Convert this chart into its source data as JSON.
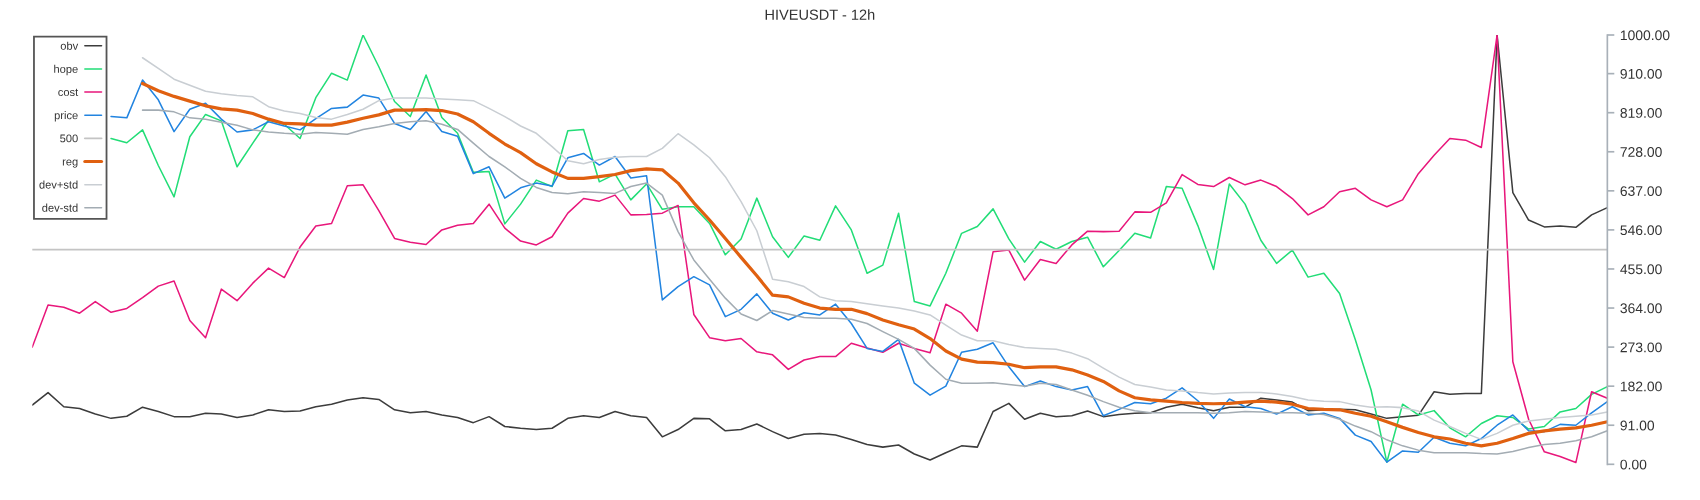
{
  "chart_data": {
    "type": "line",
    "title": "HIVEUSDT - 12h",
    "categories": [
      null,
      null,
      null,
      null,
      null,
      null,
      null,
      null,
      null,
      null,
      null,
      null,
      null,
      null,
      null,
      null,
      null,
      null,
      null,
      null,
      null,
      null,
      null,
      null,
      null,
      null,
      null,
      null,
      null,
      null,
      null,
      null,
      null,
      null,
      null,
      null,
      null,
      null,
      null,
      null,
      null,
      null,
      null,
      null,
      null,
      null,
      null,
      null,
      null,
      null,
      null,
      null,
      null,
      null,
      null,
      null,
      null,
      null,
      null,
      null,
      null,
      null,
      null,
      null,
      null,
      null,
      null,
      null,
      null,
      null,
      null,
      null,
      null,
      null,
      null,
      null,
      null,
      null,
      null,
      null,
      null,
      null,
      null,
      null,
      null,
      null,
      null,
      null,
      null,
      null,
      null,
      null,
      null,
      null,
      null,
      null,
      null,
      null,
      null,
      null,
      null
    ],
    "series": [
      {
        "name": "obv",
        "color": "#3c3c3c",
        "values": [
          138,
          167,
          134,
          130,
          117,
          107,
          112,
          133,
          123,
          111,
          111,
          119,
          117,
          109,
          115,
          127,
          123,
          124,
          134,
          140,
          150,
          155,
          151,
          127,
          120,
          123,
          115,
          109,
          97,
          111,
          88,
          84,
          81,
          84,
          107,
          113,
          109,
          123,
          113,
          109,
          64,
          81,
          107,
          106,
          78,
          81,
          94,
          76,
          60,
          70,
          72,
          68,
          58,
          46,
          40,
          45,
          24,
          10,
          27,
          43,
          40,
          123,
          142,
          105,
          119,
          111,
          113,
          124,
          111,
          116,
          119,
          120,
          133,
          140,
          132,
          125,
          133,
          133,
          154,
          150,
          145,
          125,
          127,
          128,
          127,
          117,
          107,
          111,
          114,
          169,
          163,
          165,
          165,
          1000,
          633,
          569,
          553,
          555,
          552,
          581,
          598
        ]
      },
      {
        "name": "hope",
        "color": "#22dd77",
        "values": [
          null,
          null,
          null,
          null,
          null,
          759,
          749,
          779,
          696,
          623,
          763,
          815,
          800,
          693,
          748,
          802,
          792,
          759,
          854,
          911,
          895,
          1000,
          926,
          845,
          810,
          907,
          808,
          771,
          680,
          682,
          560,
          606,
          662,
          647,
          777,
          780,
          658,
          676,
          616,
          653,
          594,
          600,
          600,
          561,
          488,
          525,
          620,
          530,
          482,
          532,
          522,
          602,
          546,
          445,
          464,
          585,
          379,
          369,
          445,
          538,
          554,
          595,
          525,
          471,
          519,
          501,
          519,
          529,
          460,
          498,
          538,
          527,
          647,
          643,
          556,
          454,
          653,
          606,
          522,
          468,
          499,
          436,
          445,
          398,
          290,
          173,
          5,
          140,
          115,
          125,
          85,
          64,
          95,
          113,
          109,
          82,
          88,
          122,
          130,
          163,
          181
        ]
      },
      {
        "name": "cost",
        "color": "#e8177b",
        "values": [
          273,
          371,
          366,
          352,
          379,
          354,
          363,
          388,
          415,
          427,
          335,
          295,
          408,
          381,
          422,
          457,
          435,
          506,
          555,
          561,
          649,
          651,
          591,
          526,
          517,
          512,
          546,
          557,
          561,
          606,
          550,
          520,
          511,
          530,
          585,
          619,
          613,
          627,
          581,
          582,
          585,
          603,
          349,
          295,
          288,
          293,
          262,
          255,
          221,
          243,
          251,
          251,
          282,
          271,
          261,
          282,
          270,
          260,
          373,
          352,
          310,
          495,
          499,
          429,
          477,
          468,
          511,
          543,
          542,
          543,
          588,
          587,
          609,
          675,
          652,
          647,
          668,
          651,
          662,
          647,
          619,
          581,
          600,
          635,
          643,
          616,
          600,
          616,
          677,
          720,
          759,
          755,
          738,
          1000,
          239,
          105,
          29,
          18,
          4,
          169,
          154
        ]
      },
      {
        "name": "price",
        "color": "#2284e0",
        "values": [
          null,
          null,
          null,
          null,
          null,
          810,
          807,
          895,
          849,
          775,
          827,
          841,
          804,
          774,
          779,
          798,
          788,
          779,
          805,
          829,
          832,
          860,
          853,
          794,
          780,
          822,
          775,
          764,
          677,
          693,
          620,
          644,
          655,
          648,
          714,
          724,
          697,
          717,
          667,
          672,
          383,
          414,
          437,
          418,
          344,
          361,
          397,
          352,
          336,
          353,
          348,
          373,
          328,
          270,
          263,
          291,
          189,
          161,
          182,
          261,
          268,
          283,
          227,
          181,
          194,
          181,
          173,
          181,
          113,
          128,
          144,
          141,
          154,
          178,
          148,
          107,
          152,
          134,
          130,
          117,
          134,
          115,
          119,
          107,
          68,
          53,
          5,
          31,
          28,
          63,
          49,
          43,
          60,
          91,
          115,
          78,
          76,
          93,
          91,
          120,
          146
        ]
      },
      {
        "name": "500",
        "color": "#c4c4c4",
        "values": [
          500,
          500,
          500,
          500,
          500,
          500,
          500,
          500,
          500,
          500,
          500,
          500,
          500,
          500,
          500,
          500,
          500,
          500,
          500,
          500,
          500,
          500,
          500,
          500,
          500,
          500,
          500,
          500,
          500,
          500,
          500,
          500,
          500,
          500,
          500,
          500,
          500,
          500,
          500,
          500,
          500,
          500,
          500,
          500,
          500,
          500,
          500,
          500,
          500,
          500,
          500,
          500,
          500,
          500,
          500,
          500,
          500,
          500,
          500,
          500,
          500,
          500,
          500,
          500,
          500,
          500,
          500,
          500,
          500,
          500,
          500,
          500,
          500,
          500,
          500,
          500,
          500,
          500,
          500,
          500,
          500,
          500,
          500,
          500,
          500,
          500,
          500,
          500,
          500,
          500,
          500,
          500,
          500,
          500,
          500,
          500,
          500,
          500,
          500,
          500,
          500
        ]
      },
      {
        "name": "reg",
        "color": "#e06010",
        "values": [
          null,
          null,
          null,
          null,
          null,
          null,
          null,
          887,
          870,
          857,
          846,
          835,
          828,
          825,
          817,
          804,
          794,
          793,
          790,
          790,
          797,
          806,
          814,
          825,
          825,
          826,
          824,
          816,
          798,
          771,
          746,
          726,
          700,
          681,
          666,
          666,
          670,
          675,
          684,
          688,
          686,
          655,
          609,
          569,
          526,
          482,
          439,
          394,
          390,
          375,
          364,
          361,
          361,
          351,
          336,
          325,
          315,
          293,
          264,
          245,
          238,
          237,
          233,
          225,
          227,
          227,
          220,
          208,
          193,
          171,
          155,
          150,
          147,
          144,
          142,
          141,
          142,
          145,
          147,
          145,
          140,
          130,
          128,
          127,
          119,
          112,
          99,
          86,
          74,
          64,
          59,
          49,
          43,
          49,
          60,
          72,
          78,
          82,
          85,
          91,
          99
        ]
      },
      {
        "name": "dev+std",
        "color": "#c9ced3",
        "values": [
          null,
          null,
          null,
          null,
          null,
          null,
          null,
          947,
          922,
          897,
          883,
          869,
          863,
          859,
          856,
          833,
          823,
          817,
          808,
          804,
          815,
          827,
          847,
          853,
          853,
          853,
          851,
          849,
          847,
          829,
          810,
          788,
          771,
          740,
          707,
          700,
          710,
          715,
          717,
          717,
          736,
          770,
          744,
          714,
          670,
          612,
          544,
          431,
          425,
          414,
          390,
          381,
          379,
          374,
          369,
          364,
          357,
          348,
          324,
          301,
          288,
          288,
          279,
          272,
          270,
          268,
          259,
          246,
          224,
          203,
          186,
          180,
          173,
          171,
          167,
          164,
          166,
          167,
          167,
          164,
          158,
          150,
          147,
          146,
          138,
          133,
          134,
          132,
          124,
          103,
          88,
          72,
          58,
          72,
          91,
          101,
          105,
          109,
          112,
          115,
          122
        ]
      },
      {
        "name": "dev-std",
        "color": "#a3acb3",
        "values": [
          null,
          null,
          null,
          null,
          null,
          null,
          null,
          825,
          825,
          821,
          807,
          804,
          797,
          790,
          779,
          774,
          771,
          769,
          773,
          771,
          769,
          780,
          786,
          794,
          798,
          800,
          792,
          780,
          748,
          717,
          693,
          666,
          645,
          633,
          630,
          635,
          633,
          631,
          647,
          655,
          627,
          542,
          476,
          431,
          387,
          350,
          335,
          358,
          350,
          342,
          340,
          340,
          338,
          328,
          309,
          291,
          270,
          231,
          198,
          189,
          189,
          190,
          186,
          182,
          189,
          186,
          173,
          161,
          146,
          133,
          125,
          120,
          120,
          120,
          120,
          119,
          120,
          123,
          122,
          120,
          120,
          119,
          116,
          105,
          89,
          76,
          57,
          43,
          33,
          27,
          27,
          27,
          25,
          24,
          30,
          39,
          46,
          49,
          55,
          64,
          78
        ]
      }
    ],
    "ylim": [
      0,
      1000
    ],
    "yticks": [
      {
        "value": 0,
        "label": "0.00"
      },
      {
        "value": 91,
        "label": "91.00"
      },
      {
        "value": 182,
        "label": "182.00"
      },
      {
        "value": 273,
        "label": "273.00"
      },
      {
        "value": 364,
        "label": "364.00"
      },
      {
        "value": 455,
        "label": "455.00"
      },
      {
        "value": 546,
        "label": "546.00"
      },
      {
        "value": 637,
        "label": "637.00"
      },
      {
        "value": 728,
        "label": "728.00"
      },
      {
        "value": 819,
        "label": "819.00"
      },
      {
        "value": 910,
        "label": "910.00"
      },
      {
        "value": 1000,
        "label": "1000.00"
      }
    ],
    "tick_labels": "y",
    "legend": "top left"
  }
}
